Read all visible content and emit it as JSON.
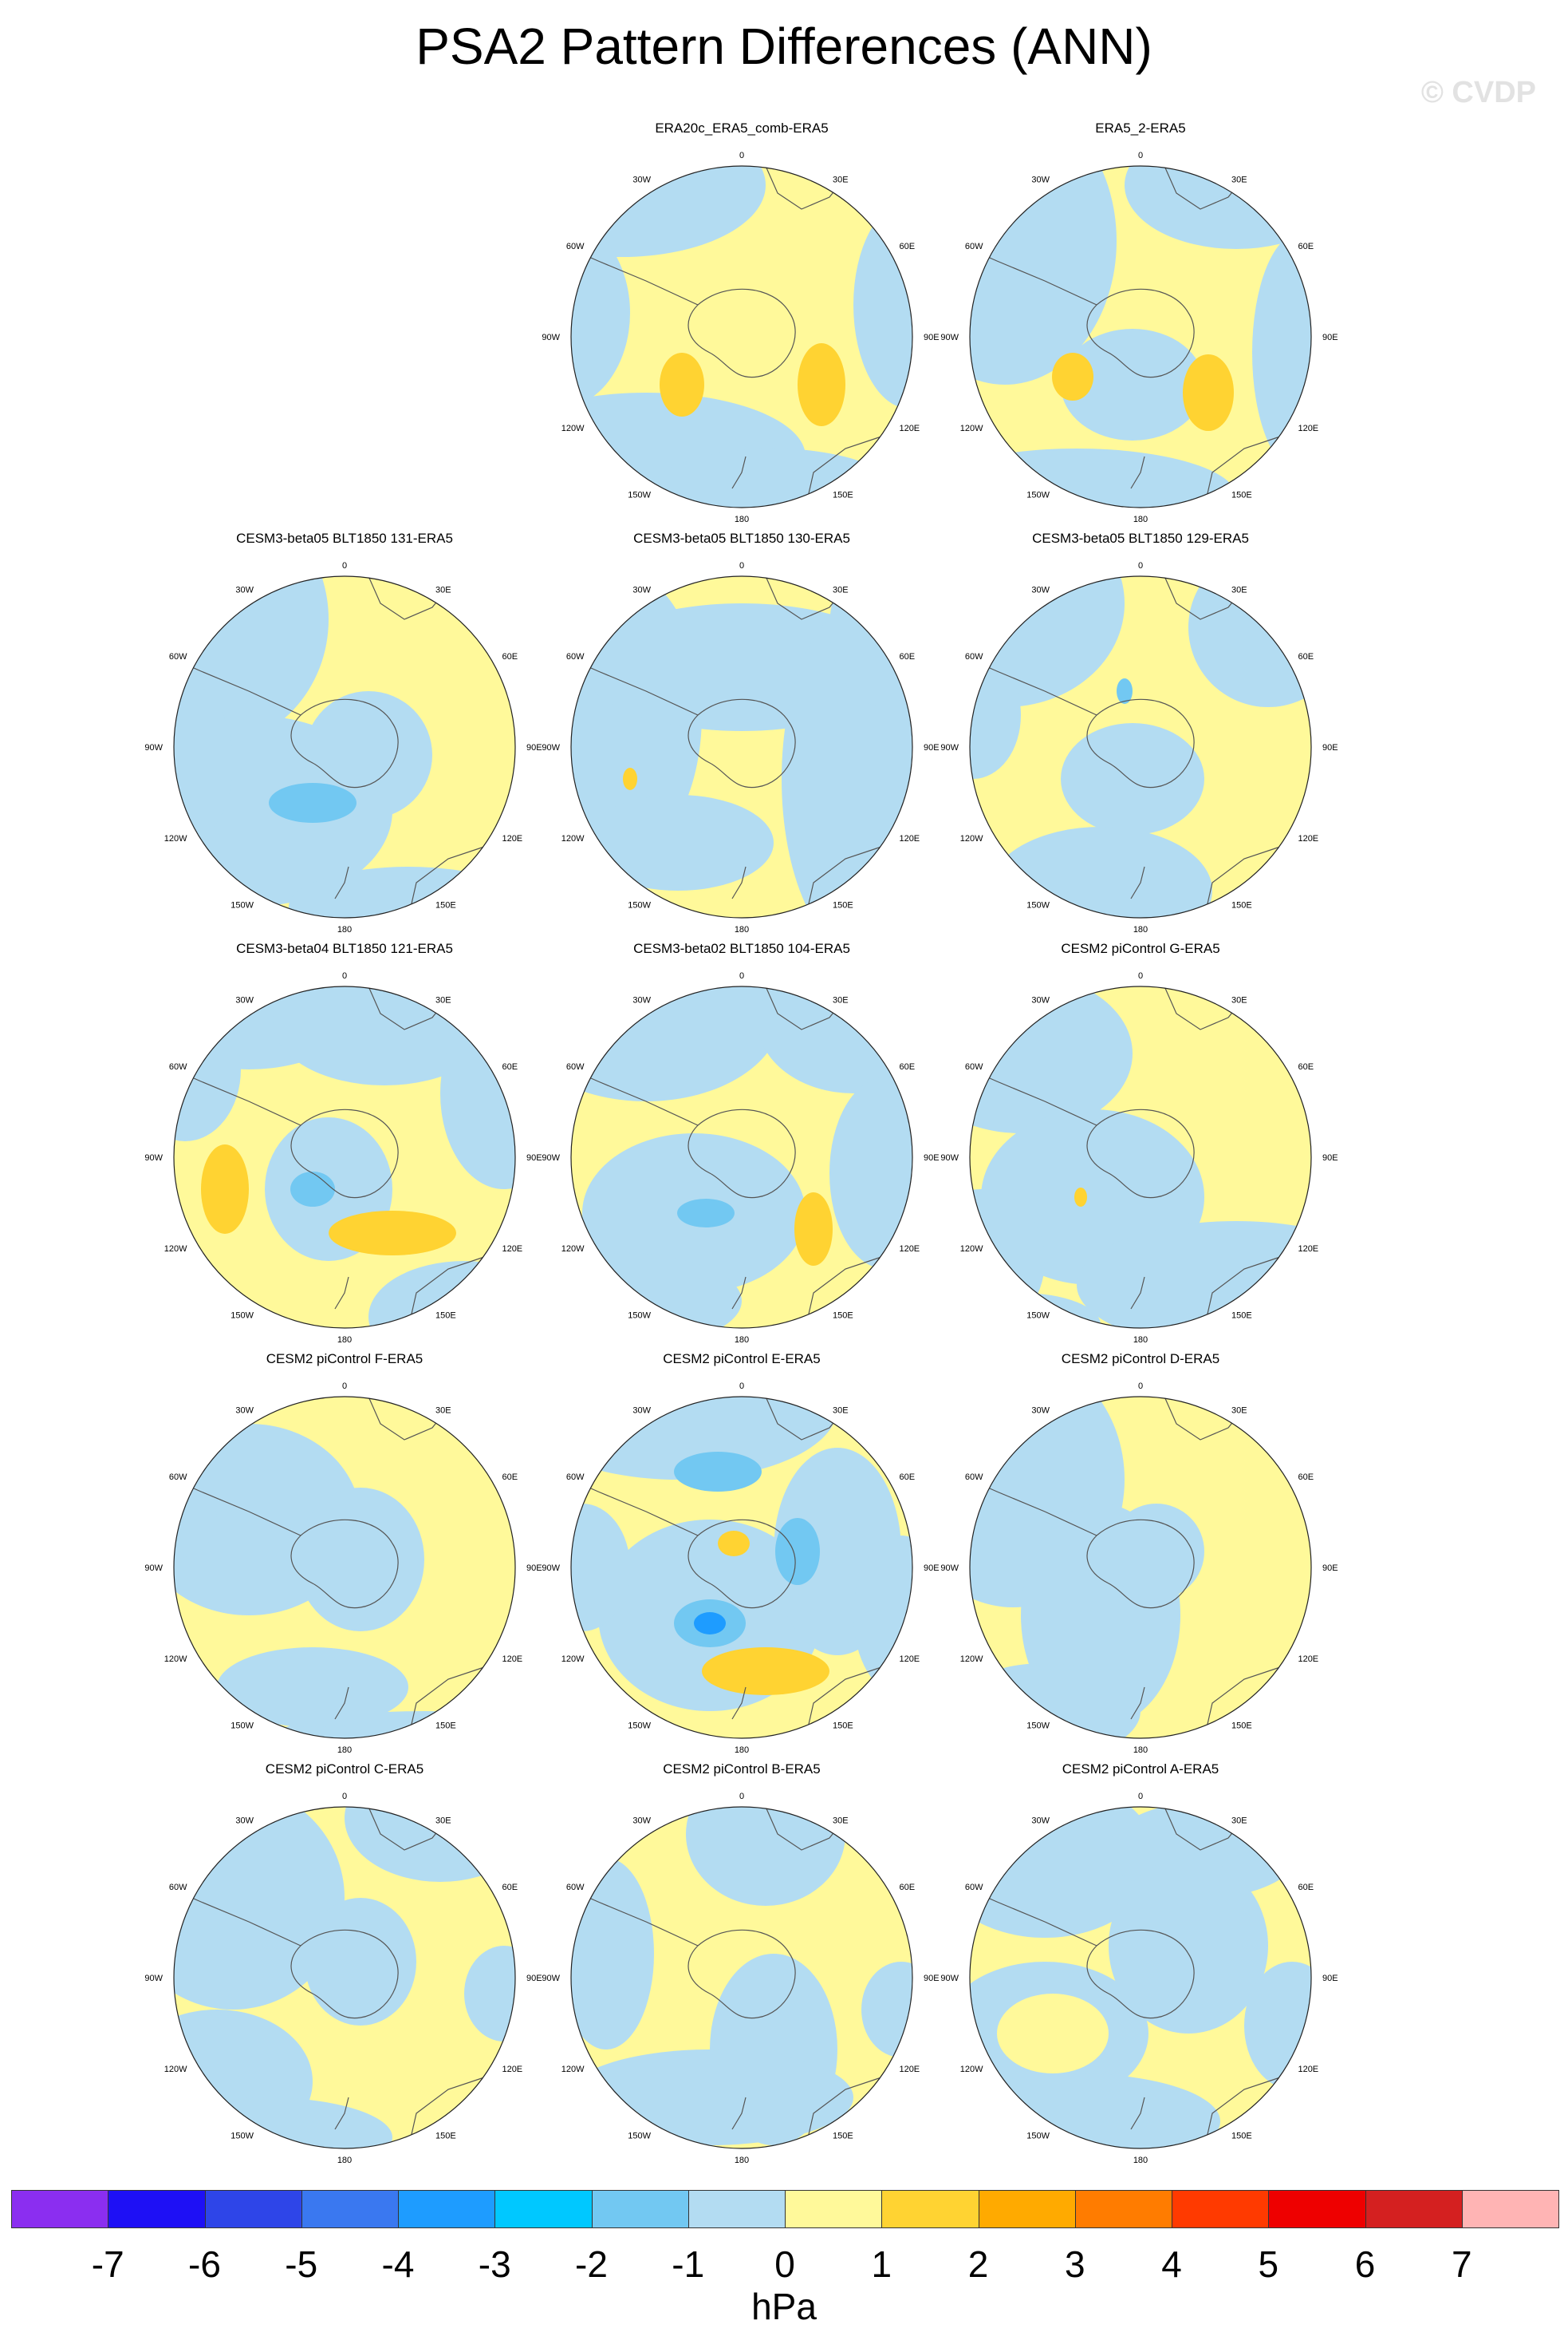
{
  "title": "PSA2 Pattern Differences (ANN)",
  "watermark": "© CVDP",
  "map_labels": {
    "lon_top": "0",
    "lon_bottom": "180",
    "lon_left": "90W",
    "lon_right": "90E",
    "ul1": "30W",
    "ul2": "60W",
    "ll1": "120W",
    "ll2": "150W",
    "ur1": "30E",
    "ur2": "60E",
    "lr1": "120E",
    "lr2": "150E"
  },
  "panels": [
    {
      "title": "ERA20c_ERA5_comb-ERA5"
    },
    {
      "title": "ERA5_2-ERA5"
    },
    {
      "title": "CESM3-beta05 BLT1850 131-ERA5"
    },
    {
      "title": "CESM3-beta05 BLT1850 130-ERA5"
    },
    {
      "title": "CESM3-beta05 BLT1850 129-ERA5"
    },
    {
      "title": "CESM3-beta04 BLT1850 121-ERA5"
    },
    {
      "title": "CESM3-beta02 BLT1850 104-ERA5"
    },
    {
      "title": "CESM2 piControl G-ERA5"
    },
    {
      "title": "CESM2 piControl F-ERA5"
    },
    {
      "title": "CESM2 piControl E-ERA5"
    },
    {
      "title": "CESM2 piControl D-ERA5"
    },
    {
      "title": "CESM2 piControl C-ERA5"
    },
    {
      "title": "CESM2 piControl B-ERA5"
    },
    {
      "title": "CESM2 piControl A-ERA5"
    }
  ],
  "colorbar": {
    "colors": [
      "#8b2ef0",
      "#1e10f5",
      "#2e45e8",
      "#3a78f0",
      "#1e9cff",
      "#00c8ff",
      "#72c8f2",
      "#b3dcf2",
      "#fff99a",
      "#ffd332",
      "#ffaa00",
      "#ff7c00",
      "#ff3a00",
      "#ee0000",
      "#d42020",
      "#ffb4b4"
    ],
    "ticks": [
      "-7",
      "-6",
      "-5",
      "-4",
      "-3",
      "-2",
      "-1",
      "0",
      "1",
      "2",
      "3",
      "4",
      "5",
      "6",
      "7"
    ],
    "units": "hPa",
    "colors_used": {
      "neg_light": "#b3dcf2",
      "neg_mid": "#72c8f2",
      "neg_strong": "#1e9cff",
      "pos_light": "#fff99a",
      "pos_mid": "#ffd332"
    }
  }
}
